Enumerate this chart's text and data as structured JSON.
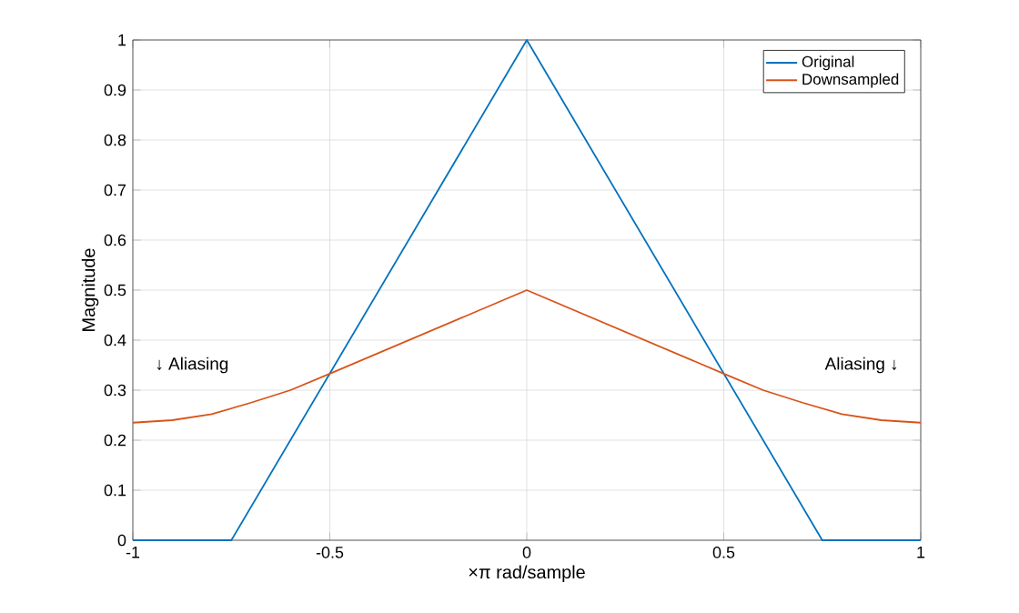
{
  "chart_data": {
    "type": "line",
    "xlabel": "×π  rad/sample",
    "ylabel": "Magnitude",
    "xlim": [
      -1,
      1
    ],
    "ylim": [
      0,
      1
    ],
    "xticks": [
      -1,
      -0.5,
      0,
      0.5,
      1
    ],
    "yticks": [
      0,
      0.1,
      0.2,
      0.3,
      0.4,
      0.5,
      0.6,
      0.7,
      0.8,
      0.9,
      1
    ],
    "grid": true,
    "legend": "top right",
    "line_style": "solid",
    "marker": "none",
    "series": [
      {
        "name": "Original",
        "color": "#0072bd",
        "x": [
          -1,
          -0.75,
          0,
          0.75,
          1
        ],
        "values": [
          0,
          0,
          1,
          0,
          0
        ]
      },
      {
        "name": "Downsampled",
        "color": "#d95319",
        "x": [
          -1,
          -0.9,
          -0.8,
          -0.7,
          -0.6,
          -0.5,
          0,
          0.5,
          0.6,
          0.7,
          0.8,
          0.9,
          1
        ],
        "values": [
          0.235,
          0.24,
          0.252,
          0.275,
          0.3,
          0.333,
          0.5,
          0.333,
          0.3,
          0.275,
          0.252,
          0.24,
          0.235
        ]
      }
    ],
    "annotations": [
      "↓  Aliasing",
      "Aliasing  ↓"
    ]
  }
}
